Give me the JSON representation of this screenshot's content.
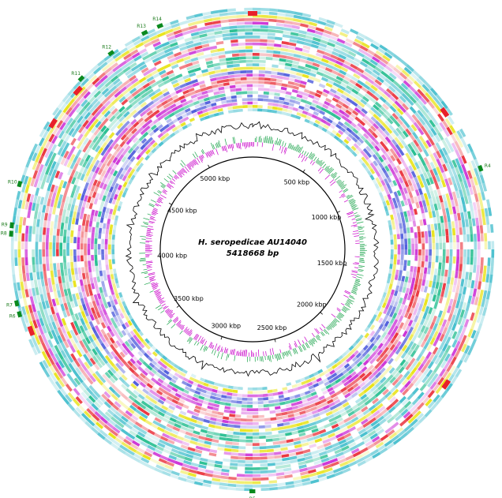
{
  "title": {
    "organism": "H. seropedicae AU14040",
    "size": "5418668 bp"
  },
  "genome_length_bp": 5418668,
  "ticks": [
    {
      "label": "500 kbp",
      "pos": 500000
    },
    {
      "label": "1000 kbp",
      "pos": 1000000
    },
    {
      "label": "1500 kbp",
      "pos": 1500000
    },
    {
      "label": "2000 kbp",
      "pos": 2000000
    },
    {
      "label": "2500 kbp",
      "pos": 2500000
    },
    {
      "label": "3000 kbp",
      "pos": 3000000
    },
    {
      "label": "3500 kbp",
      "pos": 3500000
    },
    {
      "label": "4000 kbp",
      "pos": 4000000
    },
    {
      "label": "4500 kbp",
      "pos": 4500000
    },
    {
      "label": "5000 kbp",
      "pos": 5000000
    }
  ],
  "regions": [
    {
      "label": "R4",
      "pos": 1060000
    },
    {
      "label": "R5",
      "pos": 2710000
    },
    {
      "label": "R6",
      "pos": 3830000
    },
    {
      "label": "R7",
      "pos": 3870000
    },
    {
      "label": "R8",
      "pos": 4120000
    },
    {
      "label": "R9",
      "pos": 4150000
    },
    {
      "label": "R10",
      "pos": 4300000
    },
    {
      "label": "R11",
      "pos": 4740000
    },
    {
      "label": "R12",
      "pos": 4880000
    },
    {
      "label": "R13",
      "pos": 5020000
    },
    {
      "label": "R14",
      "pos": 5080000
    }
  ],
  "colors": {
    "gc_content": "#000000",
    "gc_skew_pos": "#1aa34a",
    "gc_skew_neg": "#c800c8",
    "ring_palette": [
      "#e8202a",
      "#12b886",
      "#c81fd2",
      "#e6e000",
      "#3f4fd8",
      "#35b9c9"
    ],
    "region_green": "#0a8a1e",
    "region_red": "#e8202a",
    "label_green": "#1a7a1a"
  }
}
